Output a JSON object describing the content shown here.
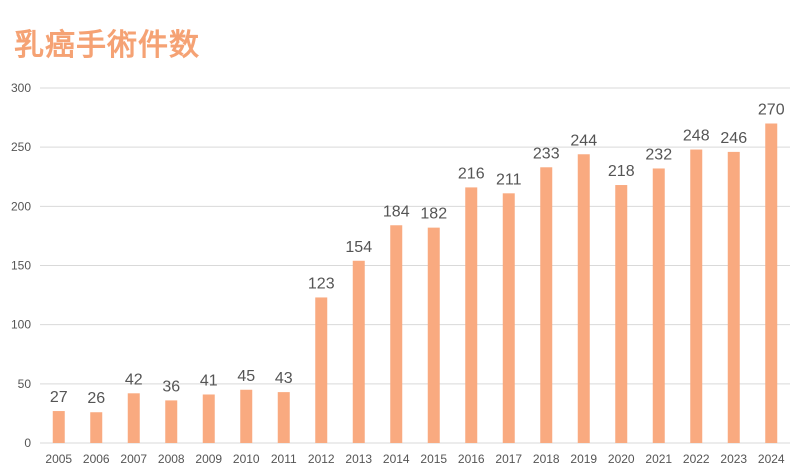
{
  "title": "乳癌手術件数",
  "colors": {
    "bar": "#F9AA80",
    "title": "#F5A274",
    "grid": "#D9D9D9",
    "text": "#555555"
  },
  "chart_data": {
    "type": "bar",
    "title": "乳癌手術件数",
    "xlabel": "",
    "ylabel": "",
    "ylim": [
      0,
      300
    ],
    "yticks": [
      0,
      50,
      100,
      150,
      200,
      250,
      300
    ],
    "grid": true,
    "categories": [
      "2005",
      "2006",
      "2007",
      "2008",
      "2009",
      "2010",
      "2011",
      "2012",
      "2013",
      "2014",
      "2015",
      "2016",
      "2017",
      "2018",
      "2019",
      "2020",
      "2021",
      "2022",
      "2023",
      "2024"
    ],
    "values": [
      27,
      26,
      42,
      36,
      41,
      45,
      43,
      123,
      154,
      184,
      182,
      216,
      211,
      233,
      244,
      218,
      232,
      248,
      246,
      270
    ]
  }
}
